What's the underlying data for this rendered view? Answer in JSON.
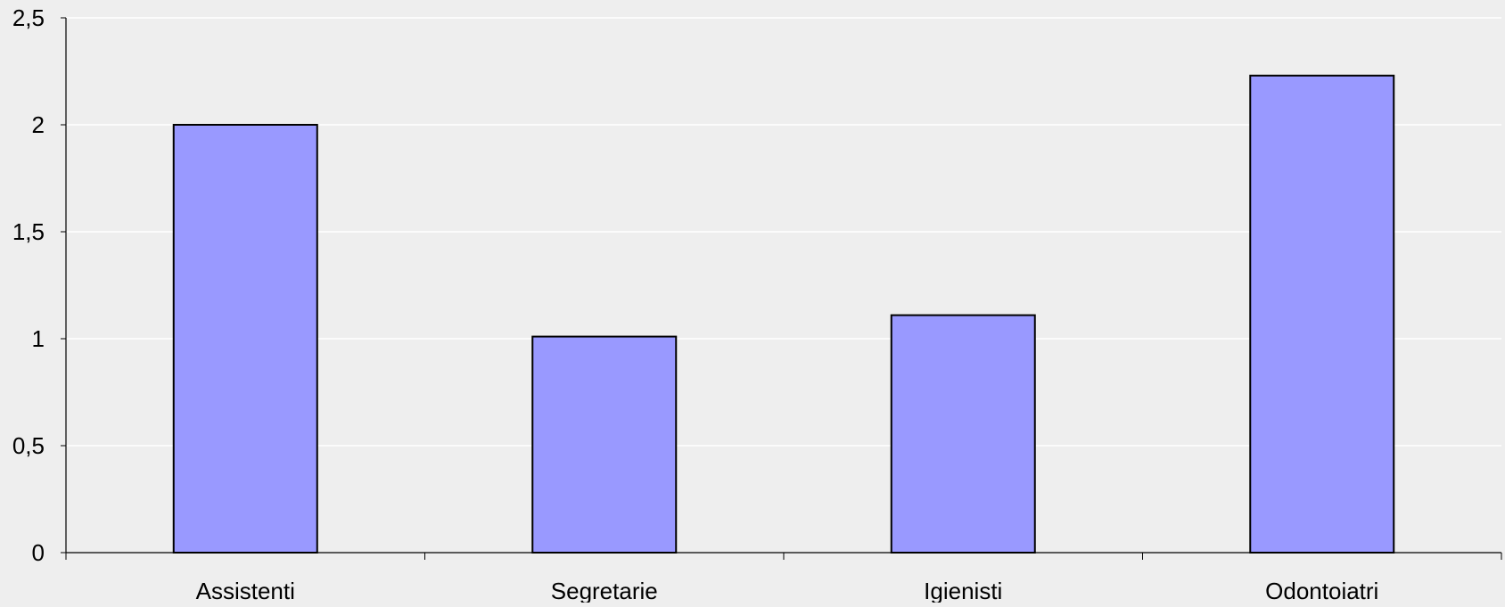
{
  "chart_data": {
    "type": "bar",
    "title": "",
    "xlabel": "",
    "ylabel": "",
    "categories": [
      "Assistenti",
      "Segretarie",
      "Igienisti",
      "Odontoiatri"
    ],
    "values": [
      2.0,
      1.01,
      1.11,
      2.23
    ],
    "ylim": [
      0,
      2.5
    ],
    "yticks": [
      0,
      0.5,
      1,
      1.5,
      2,
      2.5
    ],
    "ytick_labels": [
      "0",
      "0,5",
      "1",
      "1,5",
      "2",
      "2,5"
    ],
    "grid": true,
    "legend": "none",
    "colors": {
      "background": "#eeeeee",
      "bar_fill": "#9999ff",
      "bar_stroke": "#000000",
      "grid": "#ffffff",
      "axis": "#000000",
      "text": "#000000"
    }
  }
}
